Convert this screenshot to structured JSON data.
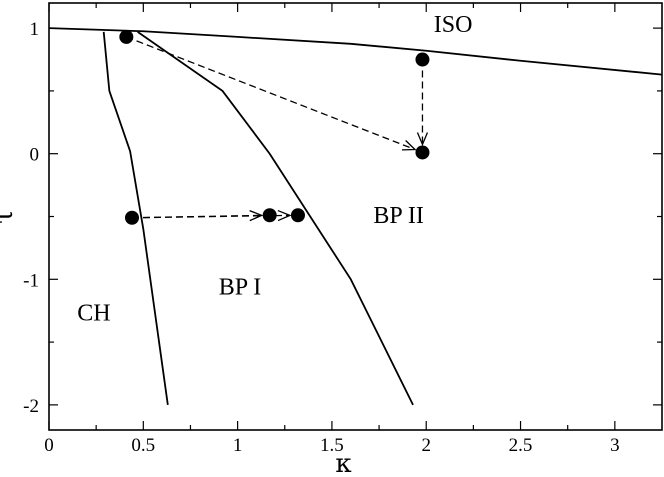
{
  "chart_data": {
    "type": "line",
    "xlabel": "κ",
    "ylabel": "τ",
    "xlim": [
      0,
      3.25
    ],
    "ylim": [
      -2.2,
      1.2
    ],
    "grid": false,
    "x_ticks": [
      {
        "value": 0,
        "label": "0"
      },
      {
        "value": 0.5,
        "label": "0.5"
      },
      {
        "value": 1,
        "label": "1"
      },
      {
        "value": 1.5,
        "label": "1.5"
      },
      {
        "value": 2,
        "label": "2"
      },
      {
        "value": 2.5,
        "label": "2.5"
      },
      {
        "value": 3,
        "label": "3"
      }
    ],
    "y_ticks": [
      {
        "value": 1,
        "label": "1"
      },
      {
        "value": 0,
        "label": "0"
      },
      {
        "value": -1,
        "label": "-1"
      },
      {
        "value": -2,
        "label": "-2"
      }
    ],
    "series": [
      {
        "id": "iso-boundary",
        "x": [
          0,
          0.5,
          1,
          1.6,
          2,
          2.5,
          3.25
        ],
        "y": [
          1.0,
          0.975,
          0.93,
          0.875,
          0.82,
          0.74,
          0.63
        ]
      },
      {
        "id": "ch-bpi-boundary",
        "x": [
          0.29,
          0.32,
          0.43,
          0.5,
          0.63
        ],
        "y": [
          0.97,
          0.5,
          0.02,
          -0.6,
          -2.0
        ]
      },
      {
        "id": "bpi-bpii-boundary",
        "x": [
          0.47,
          0.92,
          1.17,
          1.6,
          1.93
        ],
        "y": [
          0.97,
          0.5,
          0.0,
          -1.0,
          -2.0
        ]
      }
    ],
    "points": [
      {
        "x": 0.41,
        "y": 0.93
      },
      {
        "x": 1.98,
        "y": 0.75
      },
      {
        "x": 1.98,
        "y": 0.01
      },
      {
        "x": 0.44,
        "y": -0.51
      },
      {
        "x": 1.17,
        "y": -0.49
      },
      {
        "x": 1.32,
        "y": -0.49
      }
    ],
    "arrows": [
      {
        "from": [
          0.41,
          0.93
        ],
        "to": [
          1.98,
          0.01
        ]
      },
      {
        "from": [
          1.98,
          0.75
        ],
        "to": [
          1.98,
          0.01
        ]
      },
      {
        "from": [
          0.44,
          -0.51
        ],
        "to": [
          1.17,
          -0.49
        ]
      },
      {
        "from": [
          0.44,
          -0.51
        ],
        "to": [
          1.32,
          -0.49
        ]
      }
    ],
    "annotations": [
      {
        "text": "ISO",
        "x": 2.04,
        "y": 0.97
      },
      {
        "text": "BP II",
        "x": 1.72,
        "y": -0.55
      },
      {
        "text": "BP I",
        "x": 0.9,
        "y": -1.12
      },
      {
        "text": "CH",
        "x": 0.15,
        "y": -1.33
      }
    ]
  }
}
